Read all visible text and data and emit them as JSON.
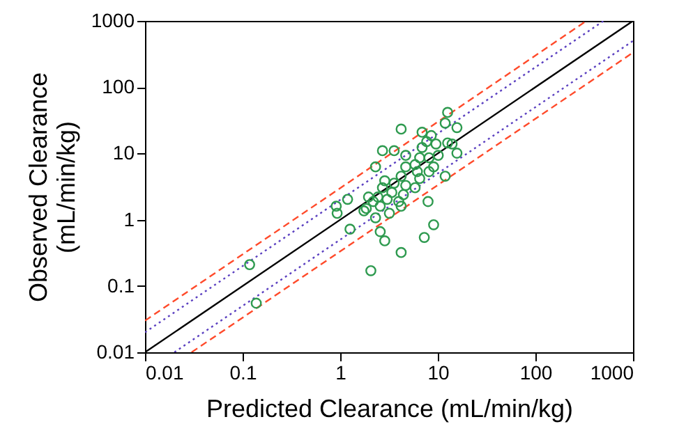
{
  "chart_data": {
    "type": "scatter",
    "xlabel": "Predicted Clearance (mL/min/kg)",
    "ylabel": "Observed Clearance\n(mL/min/kg)",
    "log": "xy",
    "grid": false,
    "marker": "circle",
    "xlim": [
      0.01,
      1000
    ],
    "ylim": [
      0.01,
      1000
    ],
    "xticks": [
      0.01,
      0.1,
      1,
      10,
      100,
      1000
    ],
    "yticks": [
      0.01,
      0.1,
      1,
      10,
      100,
      1000
    ],
    "series": [
      {
        "type": "line",
        "color": "#ff4a2a",
        "line_style": "dashed",
        "marker": "none",
        "x": [
          0.01,
          333.3
        ],
        "values": [
          0.03,
          1000
        ]
      },
      {
        "type": "line",
        "color": "#5a3fc0",
        "line_style": "dotted",
        "marker": "none",
        "x": [
          0.01,
          500
        ],
        "values": [
          0.02,
          1000
        ]
      },
      {
        "type": "line",
        "color": "#000000",
        "line_style": "solid",
        "marker": "none",
        "x": [
          0.01,
          1000
        ],
        "values": [
          0.01,
          1000
        ]
      },
      {
        "type": "line",
        "color": "#5a3fc0",
        "line_style": "dotted",
        "marker": "none",
        "x": [
          0.02,
          1000
        ],
        "values": [
          0.01,
          500
        ]
      },
      {
        "type": "line",
        "color": "#ff4a2a",
        "line_style": "dashed",
        "marker": "none",
        "x": [
          0.03,
          1000
        ],
        "values": [
          0.01,
          333.3
        ]
      },
      {
        "color": "#2e9a4f",
        "x": [
          12.6,
          11.9,
          15.7,
          4.21,
          6.9,
          8.57,
          7.69,
          9.58,
          6.9,
          3.57,
          2.71,
          4.69,
          12.6,
          14.0,
          15.7,
          10.1,
          8.13,
          6.52,
          5.85,
          4.69,
          2.3,
          9.06,
          11.9,
          6.52,
          4.21,
          2.86,
          3.57,
          4.69,
          2.71,
          3.38,
          4.44,
          2.43,
          3.03,
          3.98,
          5.85,
          2.18,
          1.85,
          2.57,
          1.19,
          0.91,
          0.93,
          2.3,
          3.19,
          7.94,
          1.26,
          2.57,
          2.86,
          9.06,
          7.27,
          4.21,
          2.06,
          1.75,
          1.95,
          4.21,
          8.13,
          6.17,
          0.118,
          0.138
        ],
        "values": [
          41.6,
          28.7,
          24.5,
          23.3,
          20.9,
          18.6,
          15.1,
          13.9,
          12.3,
          11.0,
          11.0,
          9.35,
          14.4,
          13.9,
          10.1,
          9.35,
          8.61,
          8.61,
          6.78,
          6.27,
          6.27,
          6.27,
          4.54,
          4.18,
          4.54,
          3.87,
          3.56,
          3.29,
          3.04,
          2.58,
          2.39,
          2.2,
          2.03,
          1.88,
          3.04,
          1.88,
          1.48,
          1.6,
          2.03,
          1.6,
          1.25,
          1.07,
          1.25,
          1.88,
          0.72,
          0.66,
          0.48,
          0.84,
          0.54,
          0.32,
          0.17,
          1.36,
          2.2,
          1.6,
          5.32,
          5.32,
          0.21,
          0.055
        ]
      }
    ]
  }
}
